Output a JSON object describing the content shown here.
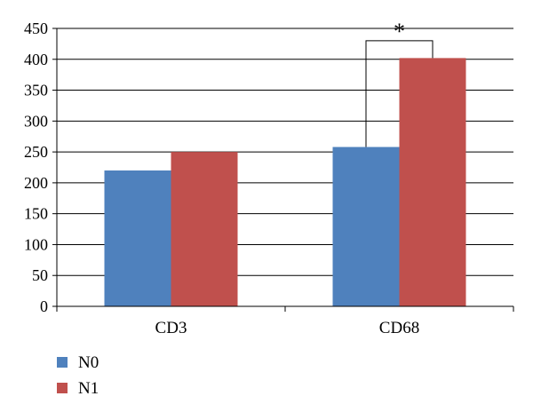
{
  "chart_data": {
    "type": "bar",
    "categories": [
      "CD3",
      "CD68"
    ],
    "series": [
      {
        "name": "N0",
        "values": [
          220,
          258
        ],
        "color": "#4F81BD"
      },
      {
        "name": "N1",
        "values": [
          250,
          402
        ],
        "color": "#C0504D"
      }
    ],
    "ylim": [
      0,
      450
    ],
    "yticks": [
      0,
      50,
      100,
      150,
      200,
      250,
      300,
      350,
      400,
      450
    ],
    "grid": true,
    "legend_position": "bottom-left",
    "annotations": [
      {
        "text": "*",
        "category": "CD68",
        "from_series": "N0",
        "to_series": "N1",
        "bracket_top": 430
      }
    ],
    "title": "",
    "xlabel": "",
    "ylabel": ""
  }
}
